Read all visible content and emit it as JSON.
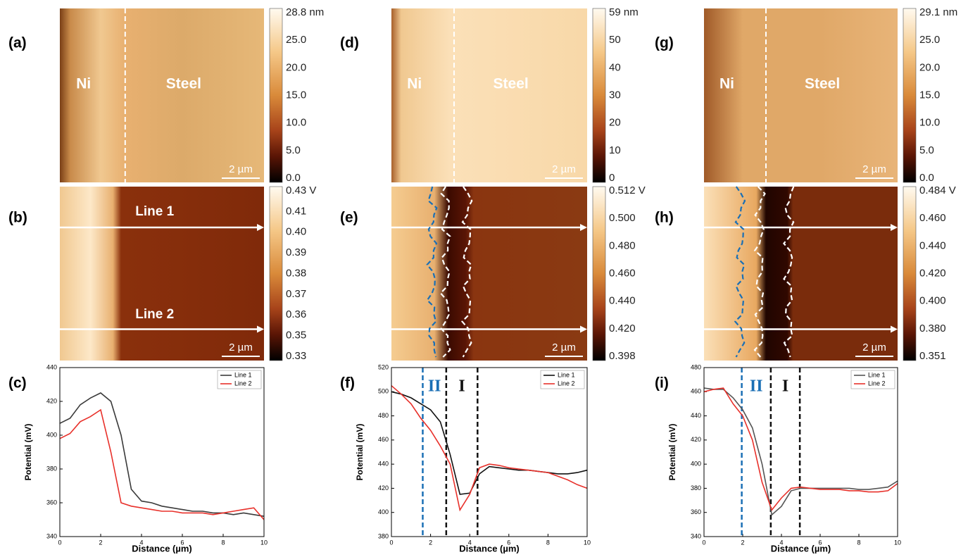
{
  "maps": [
    {
      "label": "(a)",
      "colorbar": [
        "28.8 nm",
        "25.0",
        "20.0",
        "15.0",
        "10.0",
        "5.0",
        "0.0"
      ],
      "texts": [
        "Ni",
        "Steel"
      ],
      "scale": "2 µm"
    },
    {
      "label": "(b)",
      "colorbar": [
        "0.43 V",
        "0.41",
        "0.40",
        "0.39",
        "0.38",
        "0.37",
        "0.36",
        "0.35",
        "0.33"
      ],
      "texts": [
        "Line 1",
        "Line 2"
      ],
      "scale": "2 µm"
    },
    {
      "label": "(d)",
      "colorbar": [
        "59 nm",
        "50",
        "40",
        "30",
        "20",
        "10",
        "0"
      ],
      "texts": [
        "Ni",
        "Steel"
      ],
      "scale": "2 µm"
    },
    {
      "label": "(e)",
      "colorbar": [
        "0.512 V",
        "0.500",
        "0.480",
        "0.460",
        "0.440",
        "0.420",
        "0.398"
      ],
      "scale": "2 µm"
    },
    {
      "label": "(g)",
      "colorbar": [
        "29.1 nm",
        "25.0",
        "20.0",
        "15.0",
        "10.0",
        "5.0",
        "0.0"
      ],
      "texts": [
        "Ni",
        "Steel"
      ],
      "scale": "2 µm"
    },
    {
      "label": "(h)",
      "colorbar": [
        "0.484 V",
        "0.460",
        "0.440",
        "0.420",
        "0.400",
        "0.380",
        "0.351"
      ],
      "scale": "2 µm"
    }
  ],
  "chart_data": [
    {
      "type": "line",
      "label": "(c)",
      "x_label": "Distance (µm)",
      "y_label": "Potential (mV)",
      "x": [
        0,
        0.5,
        1,
        1.5,
        2,
        2.5,
        3,
        3.5,
        4,
        4.5,
        5,
        5.5,
        6,
        6.5,
        7,
        7.5,
        8,
        8.5,
        9,
        9.5,
        10
      ],
      "series": [
        {
          "name": "Line 1",
          "color": "#3a3a3a",
          "values": [
            407,
            410,
            418,
            422,
            425,
            420,
            400,
            368,
            361,
            360,
            358,
            357,
            356,
            355,
            355,
            354,
            354,
            353,
            354,
            353,
            352
          ]
        },
        {
          "name": "Line 2",
          "color": "#e8302a",
          "values": [
            398,
            401,
            408,
            411,
            415,
            390,
            360,
            358,
            357,
            356,
            355,
            355,
            354,
            354,
            354,
            353,
            354,
            355,
            356,
            357,
            350
          ]
        }
      ],
      "xlim": [
        0,
        10
      ],
      "xticks": [
        0,
        2,
        4,
        6,
        8,
        10
      ],
      "ylim": [
        340,
        440
      ],
      "yticks": [
        340,
        360,
        380,
        400,
        420,
        440
      ],
      "legend": "upper-right"
    },
    {
      "type": "line",
      "label": "(f)",
      "x_label": "Distance (µm)",
      "y_label": "Potential (mV)",
      "x": [
        0,
        0.5,
        1,
        1.5,
        2,
        2.5,
        3,
        3.5,
        4,
        4.5,
        5,
        5.5,
        6,
        6.5,
        7,
        7.5,
        8,
        8.5,
        9,
        9.5,
        10
      ],
      "series": [
        {
          "name": "Line 1",
          "color": "#111111",
          "values": [
            500,
            498,
            495,
            490,
            485,
            475,
            448,
            415,
            416,
            432,
            438,
            437,
            436,
            435,
            435,
            434,
            433,
            432,
            432,
            433,
            435
          ]
        },
        {
          "name": "Line 2",
          "color": "#e8302a",
          "values": [
            505,
            498,
            490,
            478,
            468,
            455,
            440,
            402,
            415,
            437,
            440,
            439,
            437,
            436,
            435,
            434,
            433,
            430,
            427,
            423,
            420
          ]
        }
      ],
      "xlim": [
        0,
        10
      ],
      "xticks": [
        0,
        2,
        4,
        6,
        8,
        10
      ],
      "ylim": [
        380,
        520
      ],
      "yticks": [
        380,
        400,
        420,
        440,
        460,
        480,
        500,
        520
      ],
      "legend": "upper-right",
      "vlines": [
        {
          "x": 1.6,
          "color": "#1a6fb5"
        },
        {
          "x": 2.8,
          "color": "#111111"
        },
        {
          "x": 4.4,
          "color": "#111111"
        }
      ],
      "annotations": [
        {
          "text": "II",
          "color": "#1a6fb5"
        },
        {
          "text": "I",
          "color": "#111111"
        }
      ]
    },
    {
      "type": "line",
      "label": "(i)",
      "x_label": "Distance (µm)",
      "y_label": "Potential (mV)",
      "x": [
        0,
        0.5,
        1,
        1.5,
        2,
        2.5,
        3,
        3.5,
        4,
        4.5,
        5,
        5.5,
        6,
        6.5,
        7,
        7.5,
        8,
        8.5,
        9,
        9.5,
        10
      ],
      "series": [
        {
          "name": "Line 1",
          "color": "#555555",
          "values": [
            463,
            462,
            462,
            455,
            445,
            430,
            400,
            358,
            365,
            378,
            380,
            380,
            380,
            380,
            380,
            380,
            379,
            379,
            380,
            381,
            386
          ]
        },
        {
          "name": "Line 2",
          "color": "#e8302a",
          "values": [
            460,
            462,
            463,
            450,
            440,
            420,
            385,
            362,
            372,
            380,
            381,
            380,
            379,
            379,
            379,
            378,
            378,
            377,
            377,
            378,
            384
          ]
        }
      ],
      "xlim": [
        0,
        10
      ],
      "xticks": [
        0,
        2,
        4,
        6,
        8,
        10
      ],
      "ylim": [
        340,
        480
      ],
      "yticks": [
        340,
        360,
        380,
        400,
        420,
        440,
        460,
        480
      ],
      "legend": "upper-right",
      "vlines": [
        {
          "x": 1.95,
          "color": "#1a6fb5"
        },
        {
          "x": 3.45,
          "color": "#111111"
        },
        {
          "x": 4.95,
          "color": "#111111"
        }
      ],
      "annotations": [
        {
          "text": "II",
          "color": "#1a6fb5"
        },
        {
          "text": "I",
          "color": "#111111"
        }
      ]
    }
  ]
}
